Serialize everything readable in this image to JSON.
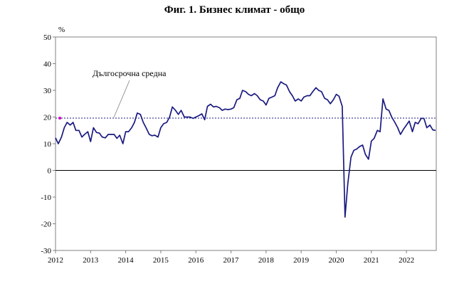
{
  "chart_data": {
    "type": "line",
    "title": "Фиг. 1. Бизнес климат - общо",
    "ylabel": "%",
    "xlabel": "",
    "ylim": [
      -30,
      50
    ],
    "yticks": [
      50,
      40,
      30,
      20,
      10,
      0,
      -10,
      -20,
      -30
    ],
    "xticks": [
      "2012",
      "2013",
      "2014",
      "2015",
      "2016",
      "2017",
      "2018",
      "2019",
      "2020",
      "2021",
      "2022"
    ],
    "xlim": [
      2012.0,
      2022.85
    ],
    "grid": false,
    "legend": "none",
    "series_color": "#1a1a80",
    "average_line": {
      "label": "Дългосрочна средна",
      "value": 19.6,
      "color": "#1a1a80"
    },
    "series": [
      {
        "name": "",
        "x": [
          2012.0,
          2012.08,
          2012.17,
          2012.25,
          2012.33,
          2012.42,
          2012.5,
          2012.58,
          2012.67,
          2012.75,
          2012.83,
          2012.92,
          2013.0,
          2013.08,
          2013.17,
          2013.25,
          2013.33,
          2013.42,
          2013.5,
          2013.58,
          2013.67,
          2013.75,
          2013.83,
          2013.92,
          2014.0,
          2014.08,
          2014.17,
          2014.25,
          2014.33,
          2014.42,
          2014.5,
          2014.58,
          2014.67,
          2014.75,
          2014.83,
          2014.92,
          2015.0,
          2015.08,
          2015.17,
          2015.25,
          2015.33,
          2015.42,
          2015.5,
          2015.58,
          2015.67,
          2015.75,
          2015.83,
          2015.92,
          2016.0,
          2016.08,
          2016.17,
          2016.25,
          2016.33,
          2016.42,
          2016.5,
          2016.58,
          2016.67,
          2016.75,
          2016.83,
          2016.92,
          2017.0,
          2017.08,
          2017.17,
          2017.25,
          2017.33,
          2017.42,
          2017.5,
          2017.58,
          2017.67,
          2017.75,
          2017.83,
          2017.92,
          2018.0,
          2018.08,
          2018.17,
          2018.25,
          2018.33,
          2018.42,
          2018.5,
          2018.58,
          2018.67,
          2018.75,
          2018.83,
          2018.92,
          2019.0,
          2019.08,
          2019.17,
          2019.25,
          2019.33,
          2019.42,
          2019.5,
          2019.58,
          2019.67,
          2019.75,
          2019.83,
          2019.92,
          2020.0,
          2020.08,
          2020.17,
          2020.25,
          2020.33,
          2020.42,
          2020.5,
          2020.58,
          2020.67,
          2020.75,
          2020.83,
          2020.92,
          2021.0,
          2021.08,
          2021.17,
          2021.25,
          2021.33,
          2021.42,
          2021.5,
          2021.58,
          2021.67,
          2021.75,
          2021.83,
          2021.92,
          2022.0,
          2022.08,
          2022.17,
          2022.25,
          2022.33,
          2022.42,
          2022.5,
          2022.58,
          2022.67,
          2022.75,
          2022.83
        ],
        "y": [
          12.2,
          10.0,
          12.5,
          16.0,
          18.0,
          17.0,
          18.0,
          15.0,
          15.0,
          12.5,
          13.5,
          14.5,
          10.8,
          16.0,
          14.2,
          14.0,
          12.5,
          12.2,
          13.5,
          13.5,
          13.5,
          12.0,
          13.2,
          10.0,
          14.5,
          14.5,
          16.0,
          18.0,
          21.5,
          21.0,
          18.0,
          16.0,
          13.5,
          13.0,
          13.2,
          12.5,
          16.0,
          17.5,
          18.0,
          20.0,
          23.8,
          22.5,
          21.0,
          22.5,
          20.0,
          20.0,
          20.0,
          19.5,
          20.0,
          20.5,
          21.2,
          19.0,
          24.0,
          24.8,
          23.8,
          24.0,
          23.5,
          22.5,
          23.0,
          22.8,
          23.0,
          23.5,
          26.5,
          27.0,
          30.0,
          29.5,
          28.5,
          28.0,
          28.8,
          28.0,
          26.5,
          26.0,
          24.5,
          27.0,
          27.5,
          28.0,
          31.0,
          33.2,
          32.5,
          32.0,
          29.5,
          28.0,
          26.0,
          26.8,
          26.0,
          27.5,
          28.0,
          28.0,
          29.5,
          31.0,
          30.0,
          29.5,
          27.0,
          26.5,
          25.0,
          26.5,
          28.5,
          27.8,
          24.0,
          -17.5,
          -5.0,
          5.0,
          7.5,
          8.0,
          9.0,
          9.5,
          6.0,
          4.2,
          11.0,
          12.0,
          15.0,
          14.5,
          26.8,
          23.0,
          22.5,
          20.0,
          18.0,
          16.0,
          13.5,
          15.5,
          17.0,
          18.5,
          14.5,
          18.0,
          17.5,
          19.5,
          19.5,
          16.0,
          17.0,
          15.2,
          15.0
        ]
      }
    ]
  }
}
